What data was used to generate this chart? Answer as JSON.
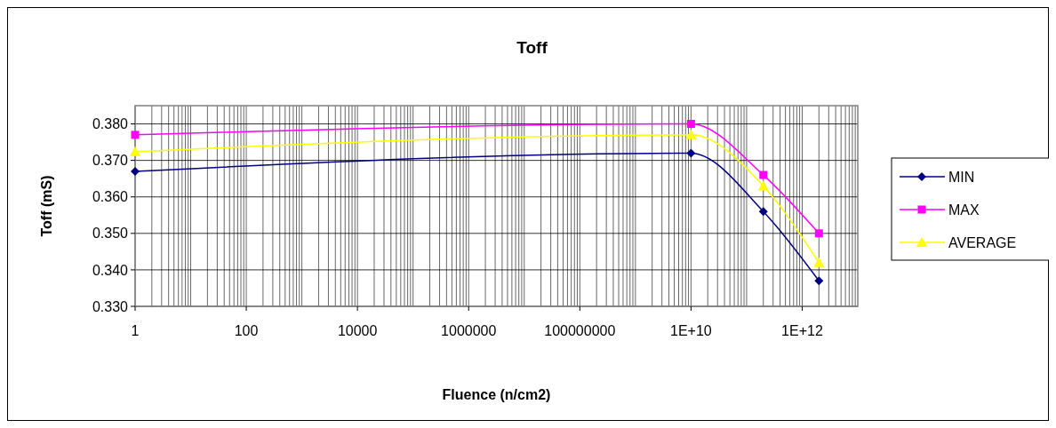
{
  "chart_data": {
    "type": "line",
    "title": "Toff",
    "xlabel": "Fluence (n/cm2)",
    "ylabel": "Toff (mS)",
    "log": "x",
    "grid": true,
    "legend": "right",
    "xlim": [
      1,
      10000000000000.0
    ],
    "xticks": [
      1,
      100,
      10000,
      1000000,
      100000000,
      {
        "value": 10000000000.0,
        "label": "1E+10"
      },
      {
        "value": 1000000000000.0,
        "label": "1E+12"
      }
    ],
    "ylim": [
      0.33,
      0.385
    ],
    "yticks": [
      {
        "value": 0.33,
        "label": "0.330"
      },
      {
        "value": 0.34,
        "label": "0.340"
      },
      {
        "value": 0.35,
        "label": "0.350"
      },
      {
        "value": 0.36,
        "label": "0.360"
      },
      {
        "value": 0.37,
        "label": "0.370"
      },
      {
        "value": 0.38,
        "label": "0.380"
      }
    ],
    "x": [
      1,
      10000000000.0,
      200000000000.0,
      2000000000000.0
    ],
    "series": [
      {
        "name": "MIN",
        "color": "#000080",
        "marker": "diamond",
        "values": [
          0.367,
          0.372,
          0.356,
          0.337
        ]
      },
      {
        "name": "MAX",
        "color": "#ff00ff",
        "marker": "square",
        "values": [
          0.377,
          0.38,
          0.366,
          0.35
        ]
      },
      {
        "name": "AVERAGE",
        "color": "#ffff00",
        "marker": "triangle",
        "values": [
          0.3724,
          0.377,
          0.363,
          0.342
        ]
      }
    ]
  }
}
